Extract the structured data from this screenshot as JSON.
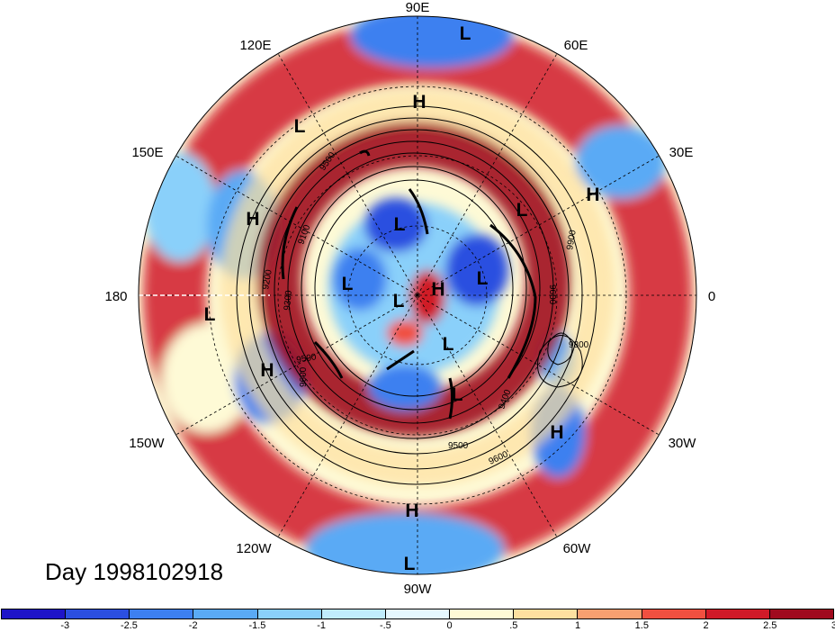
{
  "title": "Day 1998102918",
  "longitude_labels": [
    "90E",
    "60E",
    "30E",
    "0",
    "30W",
    "60W",
    "90W",
    "120W",
    "150W",
    "180",
    "150E",
    "120E"
  ],
  "pressure_system_labels": [
    "H",
    "L"
  ],
  "contour_labels": [
    "9100",
    "9200",
    "9300",
    "9400",
    "9500",
    "9600",
    "9800",
    "9900"
  ],
  "colorbar": {
    "levels": [
      "-3",
      "-2.5",
      "-2",
      "-1.5",
      "-1",
      "-.5",
      "0",
      ".5",
      "1",
      "1.5",
      "2",
      "2.5",
      "3"
    ],
    "colors": [
      "#1e14c8",
      "#2b4fe0",
      "#3d80f0",
      "#5aaaf5",
      "#8ad0fa",
      "#c0ecfc",
      "#e6f8fe",
      "#fefad6",
      "#fde0a0",
      "#f8a070",
      "#f05040",
      "#d01a28",
      "#a00a1e"
    ]
  }
}
